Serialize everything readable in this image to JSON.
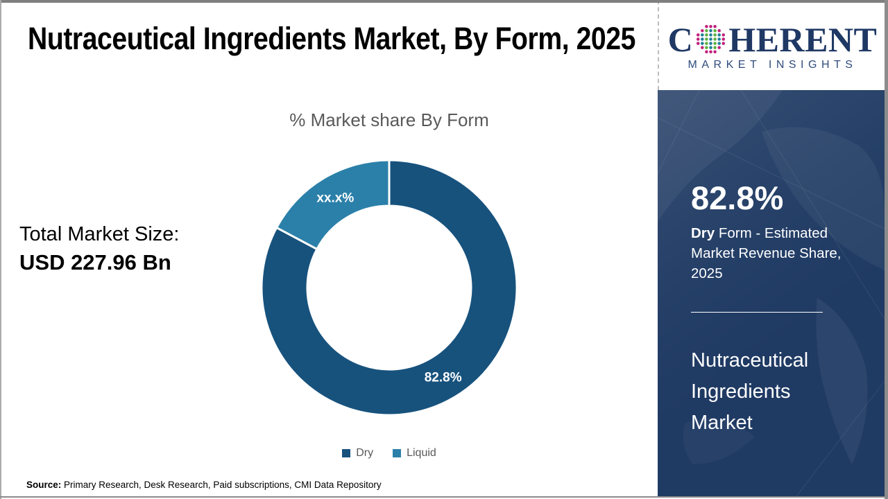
{
  "title": "Nutraceutical Ingredients Market, By Form, 2025",
  "logo": {
    "part1": "C",
    "part2": "HERENT",
    "subtitle": "MARKET INSIGHTS",
    "text_color": "#1f3864",
    "globe_colors": {
      "outer": "#c1207c",
      "teal": "#1e7f97",
      "green": "#5caf3f"
    }
  },
  "total_market": {
    "label": "Total Market Size:",
    "value": "USD 227.96 Bn"
  },
  "chart_data": {
    "type": "pie",
    "donut": true,
    "title": "% Market share By Form",
    "categories": [
      "Dry",
      "Liquid"
    ],
    "values": [
      82.8,
      17.2
    ],
    "slice_labels": [
      "82.8%",
      "xx.x%"
    ],
    "colors": [
      "#17527d",
      "#2b80a9"
    ],
    "start_angle_deg": 0,
    "direction": "clockwise",
    "outer_radius": 184,
    "inner_radius": 118,
    "separator_color": "#ffffff",
    "legend_position": "bottom"
  },
  "sidebar": {
    "bg_color": "#1f3a63",
    "stat_value": "82.8%",
    "stat_desc_bold": "Dry",
    "stat_desc_rest": " Form - Estimated Market Revenue Share, 2025",
    "market_name": "Nutraceutical Ingredients Market"
  },
  "source": {
    "label": "Source:",
    "text": " Primary Research, Desk Research, Paid subscriptions, CMI Data Repository"
  }
}
